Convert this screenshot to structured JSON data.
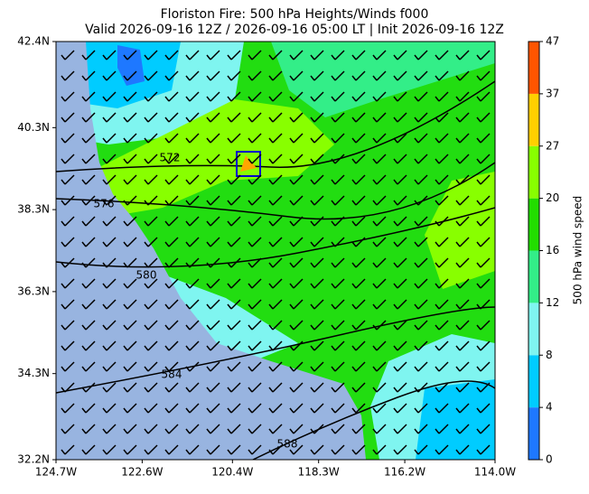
{
  "chart_data": {
    "type": "map",
    "title": "Floriston Fire: 500 hPa Heights/Winds f000",
    "subtitle": "Valid 2026-09-16 12Z / 2026-09-16 05:00 LT | Init 2026-09-16 12Z",
    "xlim": [
      -124.7,
      -114.0
    ],
    "ylim": [
      32.2,
      42.4
    ],
    "xticks": [
      {
        "value": -124.7,
        "label": "124.7W"
      },
      {
        "value": -122.6,
        "label": "122.6W"
      },
      {
        "value": -120.4,
        "label": "120.4W"
      },
      {
        "value": -118.3,
        "label": "118.3W"
      },
      {
        "value": -116.2,
        "label": "116.2W"
      },
      {
        "value": -114.0,
        "label": "114.0W"
      }
    ],
    "yticks": [
      {
        "value": 32.2,
        "label": "32.2N"
      },
      {
        "value": 34.3,
        "label": "34.3N"
      },
      {
        "value": 36.3,
        "label": "36.3N"
      },
      {
        "value": 38.3,
        "label": "38.3N"
      },
      {
        "value": 40.3,
        "label": "40.3N"
      },
      {
        "value": 42.4,
        "label": "42.4N"
      }
    ],
    "contour_labels": [
      "572",
      "576",
      "580",
      "584",
      "588"
    ],
    "colorbar": {
      "label": "500 hPa wind speed",
      "ticks": [
        0,
        4,
        8,
        12,
        16,
        20,
        27,
        37,
        47
      ],
      "colors": [
        "#1e78ff",
        "#00ccff",
        "#7ff5f0",
        "#33ee88",
        "#22dd00",
        "#88ff00",
        "#ffd000",
        "#ff5500"
      ]
    }
  }
}
